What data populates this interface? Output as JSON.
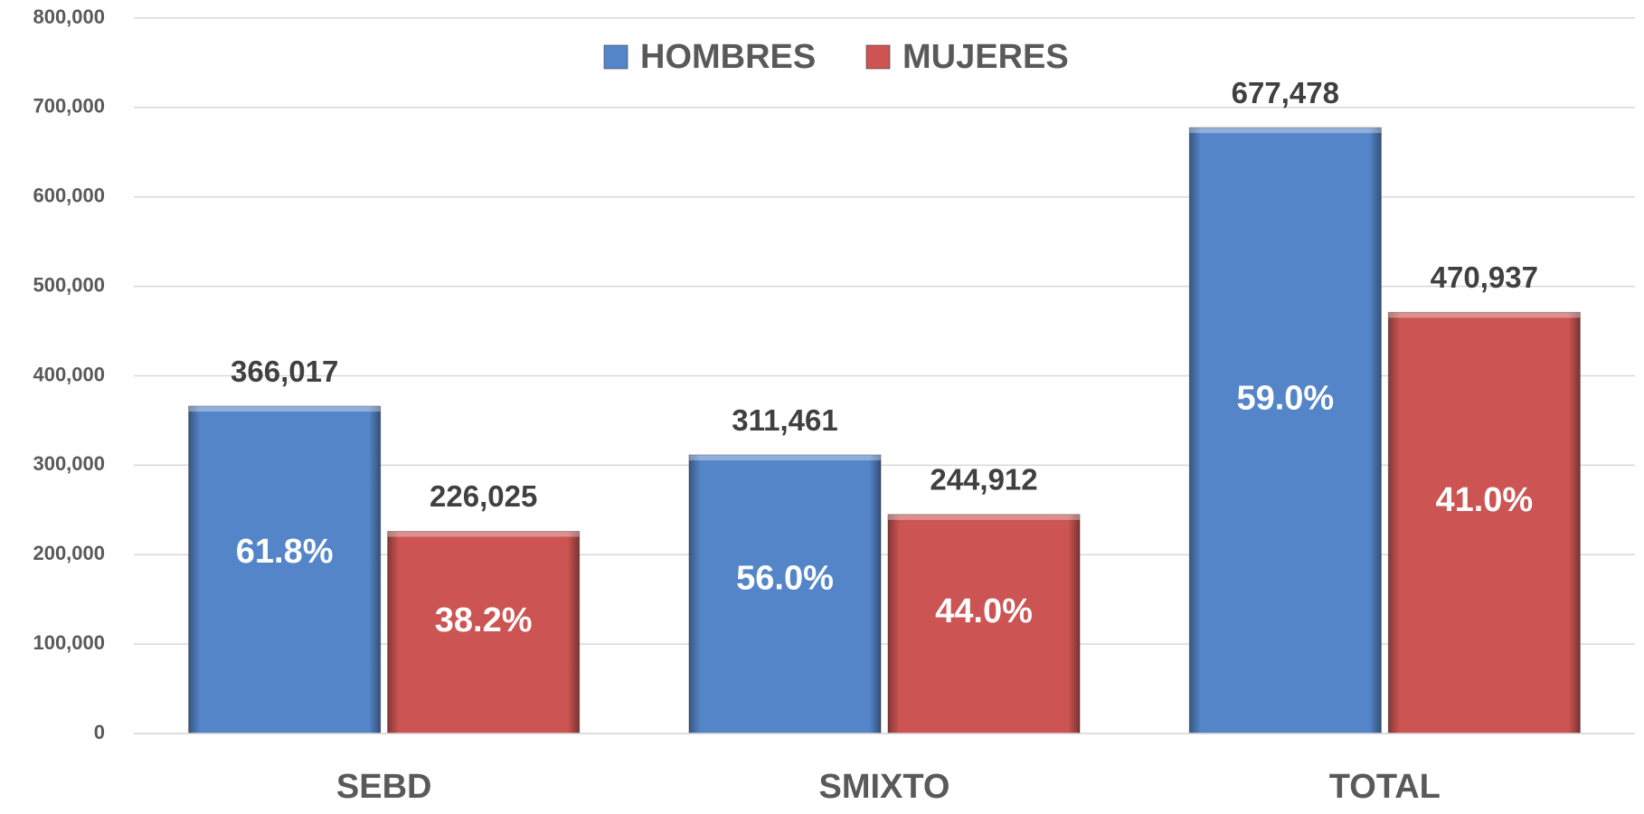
{
  "chart_data": {
    "type": "bar",
    "categories": [
      "SEBD",
      "SMIXTO",
      "TOTAL"
    ],
    "series": [
      {
        "name": "HOMBRES",
        "color": "#5585c9",
        "values": [
          366017,
          311461,
          677478
        ],
        "value_labels": [
          "366,017",
          "311,461",
          "677,478"
        ],
        "share_labels": [
          "61.8%",
          "56.0%",
          "59.0%"
        ]
      },
      {
        "name": "MUJERES",
        "color": "#cc5452",
        "values": [
          226025,
          244912,
          470937
        ],
        "value_labels": [
          "226,025",
          "244,912",
          "470,937"
        ],
        "share_labels": [
          "38.2%",
          "44.0%",
          "41.0%"
        ]
      }
    ],
    "ylim": [
      0,
      800000
    ],
    "yticks": [
      0,
      {
        "value": 100000,
        "label": "100,000"
      },
      {
        "value": 200000,
        "label": "200,000"
      },
      {
        "value": 300000,
        "label": "300,000"
      },
      {
        "value": 400000,
        "label": "400,000"
      },
      {
        "value": 500000,
        "label": "500,000"
      },
      {
        "value": 600000,
        "label": "600,000"
      },
      {
        "value": 700000,
        "label": "700,000"
      },
      {
        "value": 800000,
        "label": "800,000"
      }
    ],
    "grid": true,
    "legend": "top"
  }
}
